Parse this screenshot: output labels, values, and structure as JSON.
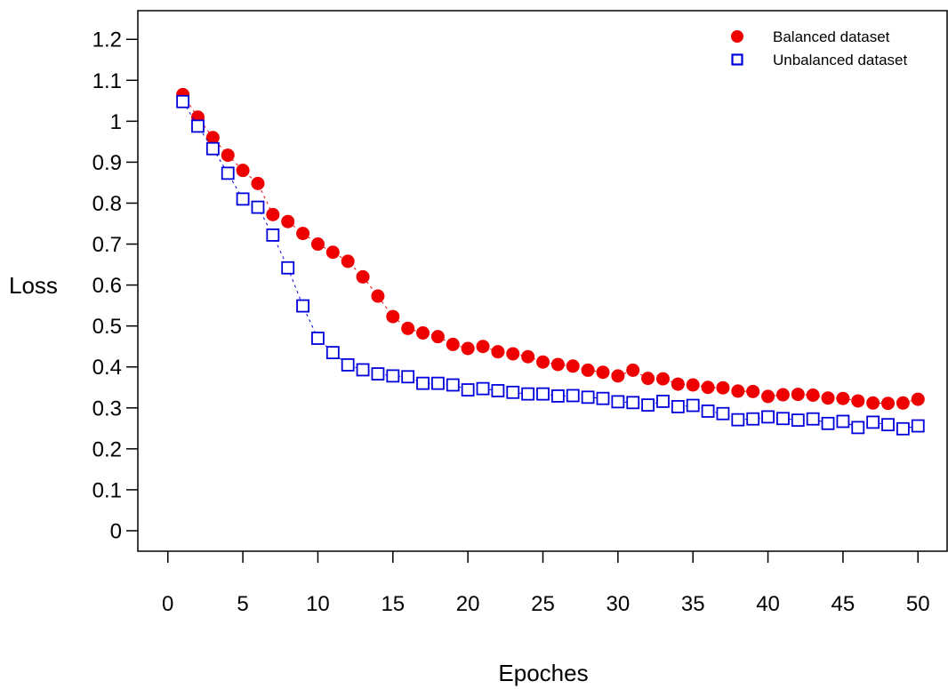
{
  "chart_data": {
    "type": "scatter",
    "xlabel": "Epoches",
    "ylabel": "Loss",
    "xlim": [
      -2,
      52
    ],
    "ylim": [
      -0.05,
      1.27
    ],
    "xticks": [
      0,
      5,
      10,
      15,
      20,
      25,
      30,
      35,
      40,
      45,
      50
    ],
    "yticks": [
      0,
      0.1,
      0.2,
      0.3,
      0.4,
      0.5,
      0.6,
      0.7,
      0.8,
      0.9,
      1,
      1.1,
      1.2
    ],
    "xtick_labels": [
      "0",
      "5",
      "10",
      "15",
      "20",
      "25",
      "30",
      "35",
      "40",
      "45",
      "50"
    ],
    "ytick_labels": [
      "0",
      "0.1",
      "0.2",
      "0.3",
      "0.4",
      "0.5",
      "0.6",
      "0.7",
      "0.8",
      "0.9",
      "1",
      "1.1",
      "1.2"
    ],
    "grid": false,
    "legend_position": "top-right",
    "x": [
      1,
      2,
      3,
      4,
      5,
      6,
      7,
      8,
      9,
      10,
      11,
      12,
      13,
      14,
      15,
      16,
      17,
      18,
      19,
      20,
      21,
      22,
      23,
      24,
      25,
      26,
      27,
      28,
      29,
      30,
      31,
      32,
      33,
      34,
      35,
      36,
      37,
      38,
      39,
      40,
      41,
      42,
      43,
      44,
      45,
      46,
      47,
      48,
      49,
      50
    ],
    "series": [
      {
        "name": "Balanced dataset",
        "marker": "filled-circle",
        "color": "#ee0000",
        "values": [
          1.065,
          1.01,
          0.96,
          0.917,
          0.88,
          0.848,
          0.772,
          0.755,
          0.726,
          0.7,
          0.68,
          0.658,
          0.62,
          0.573,
          0.523,
          0.494,
          0.483,
          0.474,
          0.455,
          0.445,
          0.45,
          0.437,
          0.432,
          0.425,
          0.412,
          0.406,
          0.402,
          0.392,
          0.387,
          0.378,
          0.392,
          0.372,
          0.371,
          0.358,
          0.356,
          0.35,
          0.349,
          0.341,
          0.34,
          0.328,
          0.332,
          0.333,
          0.331,
          0.324,
          0.323,
          0.317,
          0.312,
          0.311,
          0.312,
          0.321
        ]
      },
      {
        "name": "Unbalanced dataset",
        "marker": "open-square",
        "color": "#0000dd",
        "values": [
          1.048,
          0.988,
          0.933,
          0.873,
          0.81,
          0.79,
          0.722,
          0.642,
          0.549,
          0.47,
          0.435,
          0.405,
          0.393,
          0.383,
          0.378,
          0.376,
          0.36,
          0.36,
          0.356,
          0.344,
          0.347,
          0.342,
          0.338,
          0.334,
          0.334,
          0.329,
          0.33,
          0.326,
          0.323,
          0.315,
          0.313,
          0.307,
          0.316,
          0.303,
          0.306,
          0.292,
          0.286,
          0.271,
          0.273,
          0.278,
          0.274,
          0.27,
          0.273,
          0.262,
          0.267,
          0.252,
          0.265,
          0.259,
          0.249,
          0.256
        ]
      }
    ]
  }
}
